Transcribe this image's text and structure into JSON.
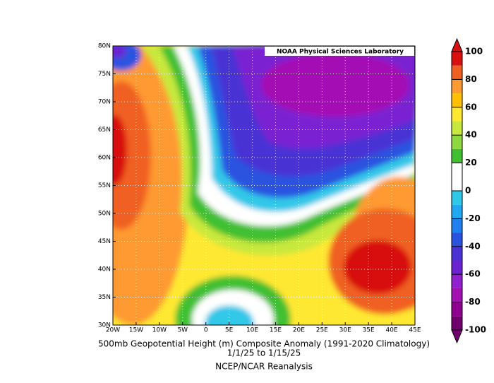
{
  "map": {
    "source_label": "NOAA Physical Sciences Laboratory",
    "title": "500mb Geopotential Height (m) Composite Anomaly (1991-2020 Climatology)",
    "date_range": "1/1/25   to 1/15/25",
    "dataset": "NCEP/NCAR Reanalysis",
    "xlim": [
      -20,
      45
    ],
    "ylim": [
      30,
      80
    ],
    "xticks": [
      {
        "value": -20,
        "label": "20W"
      },
      {
        "value": -15,
        "label": "15W"
      },
      {
        "value": -10,
        "label": "10W"
      },
      {
        "value": -5,
        "label": "5W"
      },
      0,
      {
        "value": 5,
        "label": "5E"
      },
      {
        "value": 10,
        "label": "10E"
      },
      {
        "value": 15,
        "label": "15E"
      },
      {
        "value": 20,
        "label": "20E"
      },
      {
        "value": 25,
        "label": "25E"
      },
      {
        "value": 30,
        "label": "30E"
      },
      {
        "value": 35,
        "label": "35E"
      },
      {
        "value": 40,
        "label": "40E"
      },
      {
        "value": 45,
        "label": "45E"
      }
    ],
    "yticks": [
      {
        "value": 30,
        "label": "30N"
      },
      {
        "value": 35,
        "label": "35N"
      },
      {
        "value": 40,
        "label": "40N"
      },
      {
        "value": 45,
        "label": "45N"
      },
      {
        "value": 50,
        "label": "50N"
      },
      {
        "value": 55,
        "label": "55N"
      },
      {
        "value": 60,
        "label": "60N"
      },
      {
        "value": 65,
        "label": "65N"
      },
      {
        "value": 70,
        "label": "70N"
      },
      {
        "value": 75,
        "label": "75N"
      },
      {
        "value": 80,
        "label": "80N"
      }
    ],
    "grid": true,
    "colorbar": {
      "range": [
        -100,
        100
      ],
      "ticks": [
        -100,
        -80,
        -60,
        -40,
        -20,
        0,
        20,
        40,
        60,
        80,
        100
      ],
      "colors": [
        "#70006e",
        "#900090",
        "#a410b4",
        "#9020d0",
        "#6a22d2",
        "#4a32d4",
        "#2a52e0",
        "#2080f0",
        "#20a8f0",
        "#30c8e8",
        "#ffffff",
        "#ffffff",
        "#40c030",
        "#90d840",
        "#c8e83c",
        "#ffe830",
        "#ffc000",
        "#ff9a30",
        "#f06020",
        "#d81010"
      ]
    }
  }
}
